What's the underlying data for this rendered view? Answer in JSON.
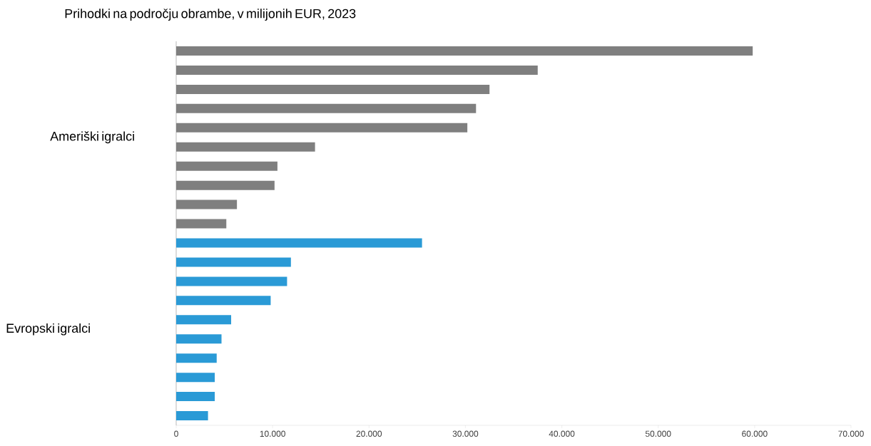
{
  "chart_data": {
    "type": "bar",
    "orientation": "horizontal",
    "title": "Prihodki na področju obrambe, v milijonih EUR, 2023",
    "annotations": [
      "Ameriški igralci",
      "Evropski igralci"
    ],
    "categories": [
      null,
      null,
      null,
      null,
      null,
      null,
      null,
      null,
      null,
      null,
      null,
      null,
      null,
      null,
      null,
      null,
      null,
      null,
      null,
      null
    ],
    "values": [
      59800,
      37500,
      32500,
      31100,
      30200,
      14400,
      10500,
      10200,
      6300,
      5200,
      25500,
      11900,
      11500,
      9800,
      5700,
      4700,
      4200,
      4000,
      4000,
      3300
    ],
    "colors": [
      "#7f7f7f",
      "#7f7f7f",
      "#7f7f7f",
      "#7f7f7f",
      "#7f7f7f",
      "#7f7f7f",
      "#7f7f7f",
      "#7f7f7f",
      "#7f7f7f",
      "#7f7f7f",
      "#2a9ad6",
      "#2a9ad6",
      "#2a9ad6",
      "#2a9ad6",
      "#2a9ad6",
      "#2a9ad6",
      "#2a9ad6",
      "#2a9ad6",
      "#2a9ad6",
      "#2a9ad6"
    ],
    "xlim": [
      0,
      70000
    ],
    "xticks": [
      0,
      {
        "value": 10000,
        "label": "10.000"
      },
      {
        "value": 20000,
        "label": "20.000"
      },
      {
        "value": 30000,
        "label": "30.000"
      },
      {
        "value": 40000,
        "label": "40.000"
      },
      {
        "value": 50000,
        "label": "50.000"
      },
      {
        "value": 60000,
        "label": "60.000"
      },
      {
        "value": 70000,
        "label": "70.000"
      }
    ]
  }
}
